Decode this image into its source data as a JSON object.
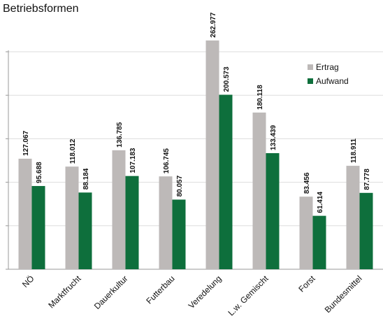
{
  "chart_data": {
    "type": "bar",
    "title": "Betriebsformen",
    "categories": [
      "NÖ",
      "Marktfrucht",
      "Dauerkultur",
      "Futterbau",
      "Veredelung",
      "L.w. Gemischt",
      "Forst",
      "Bundesmittel"
    ],
    "series": [
      {
        "name": "Ertrag",
        "color": "#bdb9b8",
        "values": [
          127.067,
          118.012,
          136.785,
          106.745,
          262.977,
          180.118,
          83.456,
          118.911
        ]
      },
      {
        "name": "Aufwand",
        "color": "#0e6f3c",
        "values": [
          95.688,
          88.184,
          107.183,
          80.057,
          200.573,
          133.439,
          61.414,
          87.778
        ]
      }
    ],
    "ylim": [
      0,
      250
    ],
    "yticks": [
      0,
      50,
      100,
      150,
      200,
      250
    ],
    "grid": true,
    "legend": "upper right"
  }
}
